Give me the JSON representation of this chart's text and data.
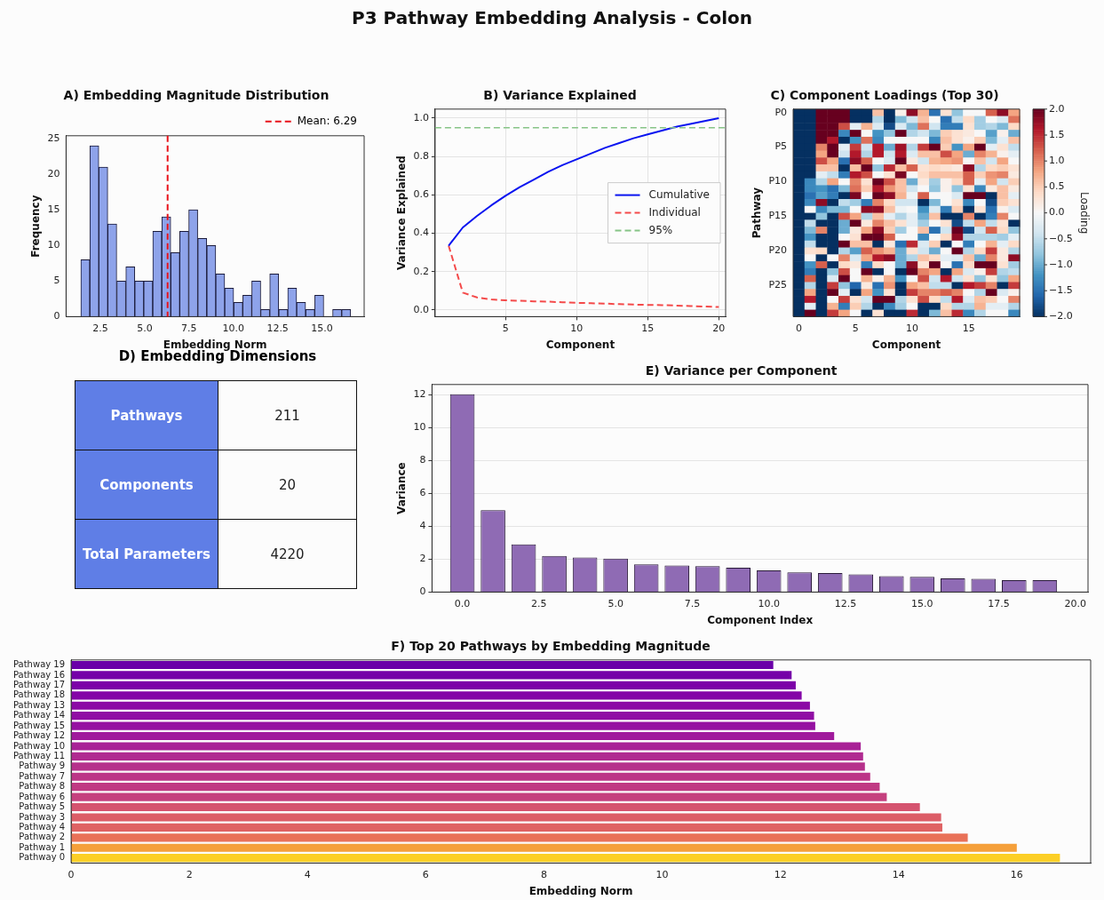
{
  "chart_data": [
    {
      "type": "histogram",
      "title": "A) Embedding Magnitude Distribution",
      "xlabel": "Embedding Norm",
      "ylabel": "Frequency",
      "annotations": [
        "P3 Pathway Embedding Analysis - Colon"
      ],
      "bins": [
        1.39,
        1.9,
        2.41,
        2.91,
        3.42,
        3.93,
        4.44,
        4.94,
        5.45,
        5.96,
        6.47,
        6.97,
        7.48,
        7.99,
        8.5,
        9.01,
        9.51,
        10.02,
        10.53,
        11.04,
        11.54,
        12.05,
        12.56,
        13.07,
        13.57,
        14.08,
        14.59,
        15.1,
        15.6,
        16.11,
        16.62
      ],
      "values": [
        8,
        24,
        21,
        13,
        5,
        7,
        5,
        5,
        12,
        14,
        9,
        12,
        15,
        11,
        10,
        6,
        4,
        2,
        3,
        5,
        1,
        6,
        1,
        4,
        2,
        1,
        3,
        0,
        1,
        1
      ],
      "color": "#8ea3ea",
      "xlim": [
        0.56,
        17.38
      ],
      "ylim": [
        0,
        25.4
      ],
      "xticks": [
        {
          "value": 2.5,
          "label": "2.5"
        },
        {
          "value": 5,
          "label": "5.0"
        },
        {
          "value": 7.5,
          "label": "7.5"
        },
        {
          "value": 10,
          "label": "10.0"
        },
        {
          "value": 12.5,
          "label": "12.5"
        },
        {
          "value": 15,
          "label": "15.0"
        }
      ],
      "yticks": [
        0,
        5,
        10,
        15,
        20,
        25
      ],
      "ref_lines": [
        {
          "axis": "x",
          "value": 6.29,
          "label": "Mean: 6.29",
          "color": "#e8121a",
          "line_style": "dashed"
        }
      ],
      "legend": "top right"
    },
    {
      "type": "line",
      "title": "B) Variance Explained",
      "xlabel": "Component",
      "ylabel": "Variance Explained",
      "x": [
        1,
        2,
        3,
        4,
        5,
        6,
        7,
        8,
        9,
        10,
        11,
        12,
        13,
        14,
        15,
        16,
        17,
        18,
        19,
        20
      ],
      "series": [
        {
          "name": "Cumulative",
          "color": "#0a14f0",
          "values": [
            0.335,
            0.43,
            0.49,
            0.545,
            0.595,
            0.64,
            0.68,
            0.72,
            0.755,
            0.785,
            0.815,
            0.845,
            0.87,
            0.895,
            0.915,
            0.935,
            0.955,
            0.97,
            0.985,
            1.0
          ]
        },
        {
          "name": "Individual",
          "color": "#f44a4a",
          "line_style": "dashed",
          "values": [
            0.335,
            0.09,
            0.065,
            0.055,
            0.05,
            0.048,
            0.045,
            0.043,
            0.04,
            0.037,
            0.035,
            0.033,
            0.03,
            0.028,
            0.026,
            0.025,
            0.023,
            0.02,
            0.018,
            0.015
          ]
        }
      ],
      "ref_lines": [
        {
          "axis": "y",
          "value": 0.95,
          "label": "95%",
          "color": "#86c486",
          "line_style": "dashed"
        }
      ],
      "xlim": [
        0.05,
        20.48
      ],
      "ylim": [
        -0.035,
        1.047
      ],
      "xticks": [
        5,
        10,
        15,
        20
      ],
      "yticks": [
        {
          "value": 0,
          "label": "0.0"
        },
        {
          "value": 0.2,
          "label": "0.2"
        },
        {
          "value": 0.4,
          "label": "0.4"
        },
        {
          "value": 0.6,
          "label": "0.6"
        },
        {
          "value": 0.8,
          "label": "0.8"
        },
        {
          "value": 1,
          "label": "1.0"
        }
      ],
      "grid": true,
      "legend": "right"
    },
    {
      "type": "heatmap",
      "title": "C) Component Loadings (Top 30)",
      "xlabel": "Component",
      "ylabel": "Pathway",
      "clabel": "Loading",
      "categories": [
        "0",
        null,
        null,
        null,
        null,
        "5",
        null,
        null,
        null,
        null,
        "10",
        null,
        null,
        null,
        null,
        "15",
        null,
        null,
        null,
        null
      ],
      "y_categories": [
        "P0",
        null,
        null,
        null,
        null,
        "P5",
        null,
        null,
        null,
        null,
        "P10",
        null,
        null,
        null,
        null,
        "P15",
        null,
        null,
        null,
        null,
        "P20",
        null,
        null,
        null,
        null,
        "P25",
        null,
        null,
        null,
        null
      ],
      "clim": [
        -2,
        2
      ],
      "cticks": [
        {
          "value": -2,
          "label": "−2.0"
        },
        {
          "value": -1.5,
          "label": "−1.5"
        },
        {
          "value": -1,
          "label": "−1.0"
        },
        {
          "value": -0.5,
          "label": "−0.5"
        },
        {
          "value": 0,
          "label": "0.0"
        },
        {
          "value": 0.5,
          "label": "0.5"
        },
        {
          "value": 1,
          "label": "1.0"
        },
        {
          "value": 1.5,
          "label": "1.5"
        },
        {
          "value": 2,
          "label": "2.0"
        }
      ],
      "cells": [
        [
          -2,
          -2,
          2,
          2,
          2,
          -2,
          -2,
          0.6,
          -2,
          0.1,
          1.8,
          0.7,
          -1.5,
          0.3,
          -0.8,
          0,
          0,
          1.2,
          1.8,
          0.8
        ],
        [
          -2,
          -2,
          2,
          2,
          2,
          -2,
          -2,
          -0.6,
          -2,
          -0.9,
          -0.4,
          0.6,
          0,
          -1.5,
          -0.5,
          0.4,
          -0.7,
          0,
          -0.3,
          1.1
        ],
        [
          -2,
          -2,
          2,
          2,
          1.3,
          -0.2,
          0.7,
          -0.3,
          -1.8,
          -0.3,
          -0.9,
          1.1,
          -0.4,
          -1.4,
          -1.4,
          0.3,
          -0.7,
          -0.6,
          -0.9,
          0.4
        ],
        [
          -2,
          -2,
          2,
          2,
          -1.3,
          2,
          0,
          -1.2,
          -0.8,
          2,
          -0.6,
          -0.4,
          -0.9,
          0.5,
          0.3,
          0.2,
          0,
          -1.1,
          0.1,
          -1
        ],
        [
          -2,
          -2,
          2,
          1.6,
          -2,
          -1.2,
          1.1,
          -1.3,
          0,
          0,
          0,
          0,
          -1.3,
          0.6,
          0.3,
          0.1,
          0.5,
          -0.9,
          -0.2,
          0.6
        ],
        [
          -2,
          -2,
          1,
          2,
          -0.2,
          1.4,
          -0.4,
          1.6,
          -1,
          1.7,
          -0.6,
          1.4,
          2,
          0.5,
          -1.2,
          0.8,
          2,
          -0.2,
          0.3,
          -0.5
        ],
        [
          -2,
          -2,
          0.8,
          2,
          -0.4,
          1.6,
          -0.6,
          1.6,
          -0.4,
          1.6,
          -0.3,
          0.6,
          0.6,
          1.3,
          0.8,
          -1,
          1,
          0.7,
          0.1,
          -0.2
        ],
        [
          -2,
          -2,
          1.3,
          0.8,
          -1.5,
          1.8,
          1.2,
          0,
          -0.3,
          2,
          0.2,
          -0.4,
          0.7,
          0.8,
          0.9,
          0,
          0.6,
          -0.4,
          0.8,
          0
        ],
        [
          -2,
          -2,
          0.6,
          0.6,
          -2,
          0.6,
          2,
          -0.8,
          1.5,
          0.6,
          1.2,
          0.3,
          0.4,
          0.3,
          0.2,
          1.8,
          -0.6,
          0.4,
          0.5,
          0.3
        ],
        [
          -2,
          -2,
          -0.2,
          -0.5,
          -1.4,
          1.6,
          1.3,
          0,
          0.3,
          1.9,
          0,
          0.4,
          0.6,
          0.6,
          0.6,
          1.2,
          0.5,
          0.9,
          1,
          0.2
        ],
        [
          -2,
          -1.3,
          -0.6,
          0.8,
          0,
          1,
          0.3,
          2,
          1.3,
          0.6,
          -1,
          0.2,
          -0.7,
          0.1,
          0.4,
          1.2,
          -0.2,
          0.8,
          -0.4,
          0.5
        ],
        [
          -2,
          -1.3,
          -1.2,
          -1.5,
          -0.9,
          1.1,
          0.5,
          1.6,
          0.9,
          0.6,
          -0.4,
          0,
          -0.8,
          0.1,
          -0.8,
          0.3,
          -1.3,
          0.2,
          0.6,
          0.2
        ],
        [
          -2,
          -1.5,
          -1.1,
          -1.4,
          -2,
          1.9,
          0,
          2,
          1.8,
          0.7,
          -0.1,
          1.2,
          0,
          0,
          -0.3,
          2,
          2,
          -2,
          0.6,
          -0.2
        ],
        [
          -2,
          -1.3,
          1.8,
          -2,
          -0.5,
          -0.7,
          -1.4,
          1,
          0.4,
          -0.4,
          -0.4,
          -2,
          -0.9,
          0,
          0.3,
          -1.3,
          0,
          -1.8,
          0.5,
          0.3
        ],
        [
          -2,
          0,
          -1.3,
          -0.9,
          -0.9,
          0,
          1.8,
          1.8,
          0.6,
          -0.1,
          0,
          -1.2,
          -0.3,
          -1.4,
          0.5,
          -2,
          0.3,
          -1.5,
          0.1,
          -0.3
        ],
        [
          -2,
          -2,
          -0.8,
          -2,
          1.3,
          0.8,
          -0.6,
          0.6,
          -0.2,
          -0.6,
          -0.2,
          -1,
          0.6,
          -2,
          -2,
          1,
          -2,
          -1.4,
          1,
          0
        ],
        [
          -2,
          -0.5,
          -2,
          -2,
          -1,
          2,
          0.2,
          1,
          0.6,
          0.3,
          -0.2,
          -0.7,
          0,
          0.3,
          -1.8,
          -0.5,
          0.8,
          -0.5,
          0.3,
          -2
        ],
        [
          -2,
          -0.9,
          1,
          -2,
          -1,
          0.2,
          0.8,
          1.8,
          0.5,
          -0.7,
          0,
          0.6,
          -1.5,
          -0.4,
          2,
          -1.8,
          -0.4,
          1.2,
          0.4,
          -0.8
        ],
        [
          -2,
          -1.2,
          -2,
          -2,
          0,
          0.3,
          2,
          2,
          1.2,
          0,
          0,
          -1.3,
          0,
          0.4,
          1.8,
          -0.6,
          -0.6,
          -0.6,
          -0.7,
          -0.2
        ],
        [
          -2,
          -0.5,
          -2,
          -2,
          2,
          0.6,
          0.6,
          -2,
          0.2,
          -1.5,
          1.5,
          -0.3,
          0.5,
          -2,
          0,
          -1.4,
          0,
          0.7,
          -0.2,
          0.4
        ],
        [
          -2,
          0.3,
          0.4,
          -2,
          -0.6,
          -1.1,
          1.2,
          0.9,
          0.7,
          -1,
          0.3,
          -0.4,
          -1,
          0,
          2,
          -0.6,
          0.4,
          1.4,
          0.2,
          -0.6
        ],
        [
          -2,
          0,
          -2,
          0,
          1,
          -0.3,
          0.8,
          1.6,
          1.8,
          -1,
          -0.6,
          0.6,
          0.4,
          -0.2,
          -0.3,
          0.6,
          -1,
          1,
          0.2,
          1.8
        ],
        [
          -2,
          -1.2,
          1.2,
          -2,
          0.4,
          0.2,
          -1.4,
          0.4,
          0,
          -1,
          1.8,
          0.3,
          2,
          0,
          -1.5,
          0.4,
          2,
          2,
          0.3,
          -0.7
        ],
        [
          -2,
          -1.4,
          -2,
          -0.8,
          1.3,
          0,
          2,
          -2,
          0,
          -2,
          2,
          1,
          0.8,
          -2,
          0.8,
          -0.3,
          0.1,
          1.4,
          -0.6,
          -0.5
        ],
        [
          -2,
          1.2,
          -2,
          -0.3,
          2,
          0,
          0.7,
          0.1,
          0.7,
          -1.2,
          0,
          1.3,
          -0.4,
          1.6,
          -0.4,
          0.3,
          -0.8,
          0.3,
          -0.8,
          0.8
        ],
        [
          -2,
          -0.6,
          -2,
          1.4,
          -0.8,
          -1.6,
          0.2,
          -1.5,
          0.9,
          -2,
          0.8,
          0.6,
          -0.5,
          -0.5,
          -2,
          1.6,
          1.4,
          1,
          -2,
          1.4
        ],
        [
          -2,
          0.8,
          -2,
          2,
          -0.2,
          -2,
          0.8,
          -1.2,
          0.3,
          -2,
          1.4,
          1,
          1,
          1.2,
          1,
          0,
          -0.6,
          2,
          -0.3,
          0.1
        ],
        [
          -2,
          1.6,
          -2,
          0,
          1.4,
          0.3,
          -0.4,
          2,
          2,
          -0.6,
          0.3,
          1.3,
          0.4,
          -0.5,
          1.6,
          -0.3,
          0.6,
          0.5,
          0,
          1
        ],
        [
          -2,
          -0.2,
          -2,
          0.7,
          -1.4,
          0.5,
          -0.6,
          -2,
          -1.3,
          -0.7,
          0,
          -2,
          -2,
          0.4,
          -0.6,
          -0.6,
          0.7,
          -0.2,
          -0.2,
          -0.6
        ],
        [
          -2,
          2,
          -2,
          1.4,
          0.8,
          0,
          -2,
          0.3,
          -2,
          -2,
          1.5,
          -2,
          -0.9,
          0.6,
          1.5,
          -1.3,
          -0.6,
          0,
          0,
          -1.3
        ]
      ]
    },
    {
      "type": "other",
      "title": "D) Embedding Dimensions",
      "categories": [
        "Pathways",
        "Components",
        "Total Parameters"
      ],
      "values": [
        211,
        20,
        4220
      ],
      "color": "#5f7ee6",
      "data_labels": true
    },
    {
      "type": "bar",
      "title": "E) Variance per Component",
      "xlabel": "Component Index",
      "ylabel": "Variance",
      "x": [
        0,
        1,
        2,
        3,
        4,
        5,
        6,
        7,
        8,
        9,
        10,
        11,
        12,
        13,
        14,
        15,
        16,
        17,
        18,
        19
      ],
      "values": [
        12.03,
        4.98,
        2.9,
        2.2,
        2.1,
        2.03,
        1.68,
        1.62,
        1.58,
        1.48,
        1.32,
        1.2,
        1.15,
        1.07,
        0.97,
        0.93,
        0.83,
        0.8,
        0.73,
        0.72
      ],
      "color": "#8f6bb4",
      "xlim": [
        -0.99,
        20.41
      ],
      "ylim": [
        0,
        12.62
      ],
      "xticks": [
        {
          "value": 0,
          "label": "0.0"
        },
        {
          "value": 2.5,
          "label": "2.5"
        },
        {
          "value": 5,
          "label": "5.0"
        },
        {
          "value": 7.5,
          "label": "7.5"
        },
        {
          "value": 10,
          "label": "10.0"
        },
        {
          "value": 12.5,
          "label": "12.5"
        },
        {
          "value": 15,
          "label": "15.0"
        },
        {
          "value": 17.5,
          "label": "17.5"
        },
        {
          "value": 20,
          "label": "20.0"
        }
      ],
      "yticks": [
        0,
        2,
        4,
        6,
        8,
        10,
        12
      ],
      "grid": "y"
    },
    {
      "type": "bar",
      "orientation": "horizontal",
      "title": "F) Top 20 Pathways by Embedding Magnitude",
      "xlabel": "Embedding Norm",
      "categories": [
        "Pathway 19",
        "Pathway 16",
        "Pathway 17",
        "Pathway 18",
        "Pathway 13",
        "Pathway 14",
        "Pathway 15",
        "Pathway 12",
        "Pathway 10",
        "Pathway 11",
        "Pathway 9",
        "Pathway 7",
        "Pathway 8",
        "Pathway 6",
        "Pathway 5",
        "Pathway 3",
        "Pathway 4",
        "Pathway 2",
        "Pathway 1",
        "Pathway 0"
      ],
      "values": [
        11.88,
        12.19,
        12.26,
        12.36,
        12.5,
        12.57,
        12.59,
        12.91,
        13.36,
        13.4,
        13.43,
        13.52,
        13.68,
        13.8,
        14.36,
        14.72,
        14.74,
        15.17,
        16.0,
        16.73
      ],
      "colors": [
        "#6a00a8",
        "#7501a8",
        "#7c02a8",
        "#8405a7",
        "#8b0aa5",
        "#900ea4",
        "#9511a1",
        "#a01a9c",
        "#a82296",
        "#b02a90",
        "#b6308b",
        "#bc3587",
        "#c03a83",
        "#c5407e",
        "#d5536f",
        "#dc5d67",
        "#df6263",
        "#e97158",
        "#f5a03a",
        "#fccf26"
      ],
      "xlim": [
        0,
        17.25
      ],
      "xticks": [
        0,
        2,
        4,
        6,
        8,
        10,
        12,
        14,
        16
      ]
    }
  ]
}
